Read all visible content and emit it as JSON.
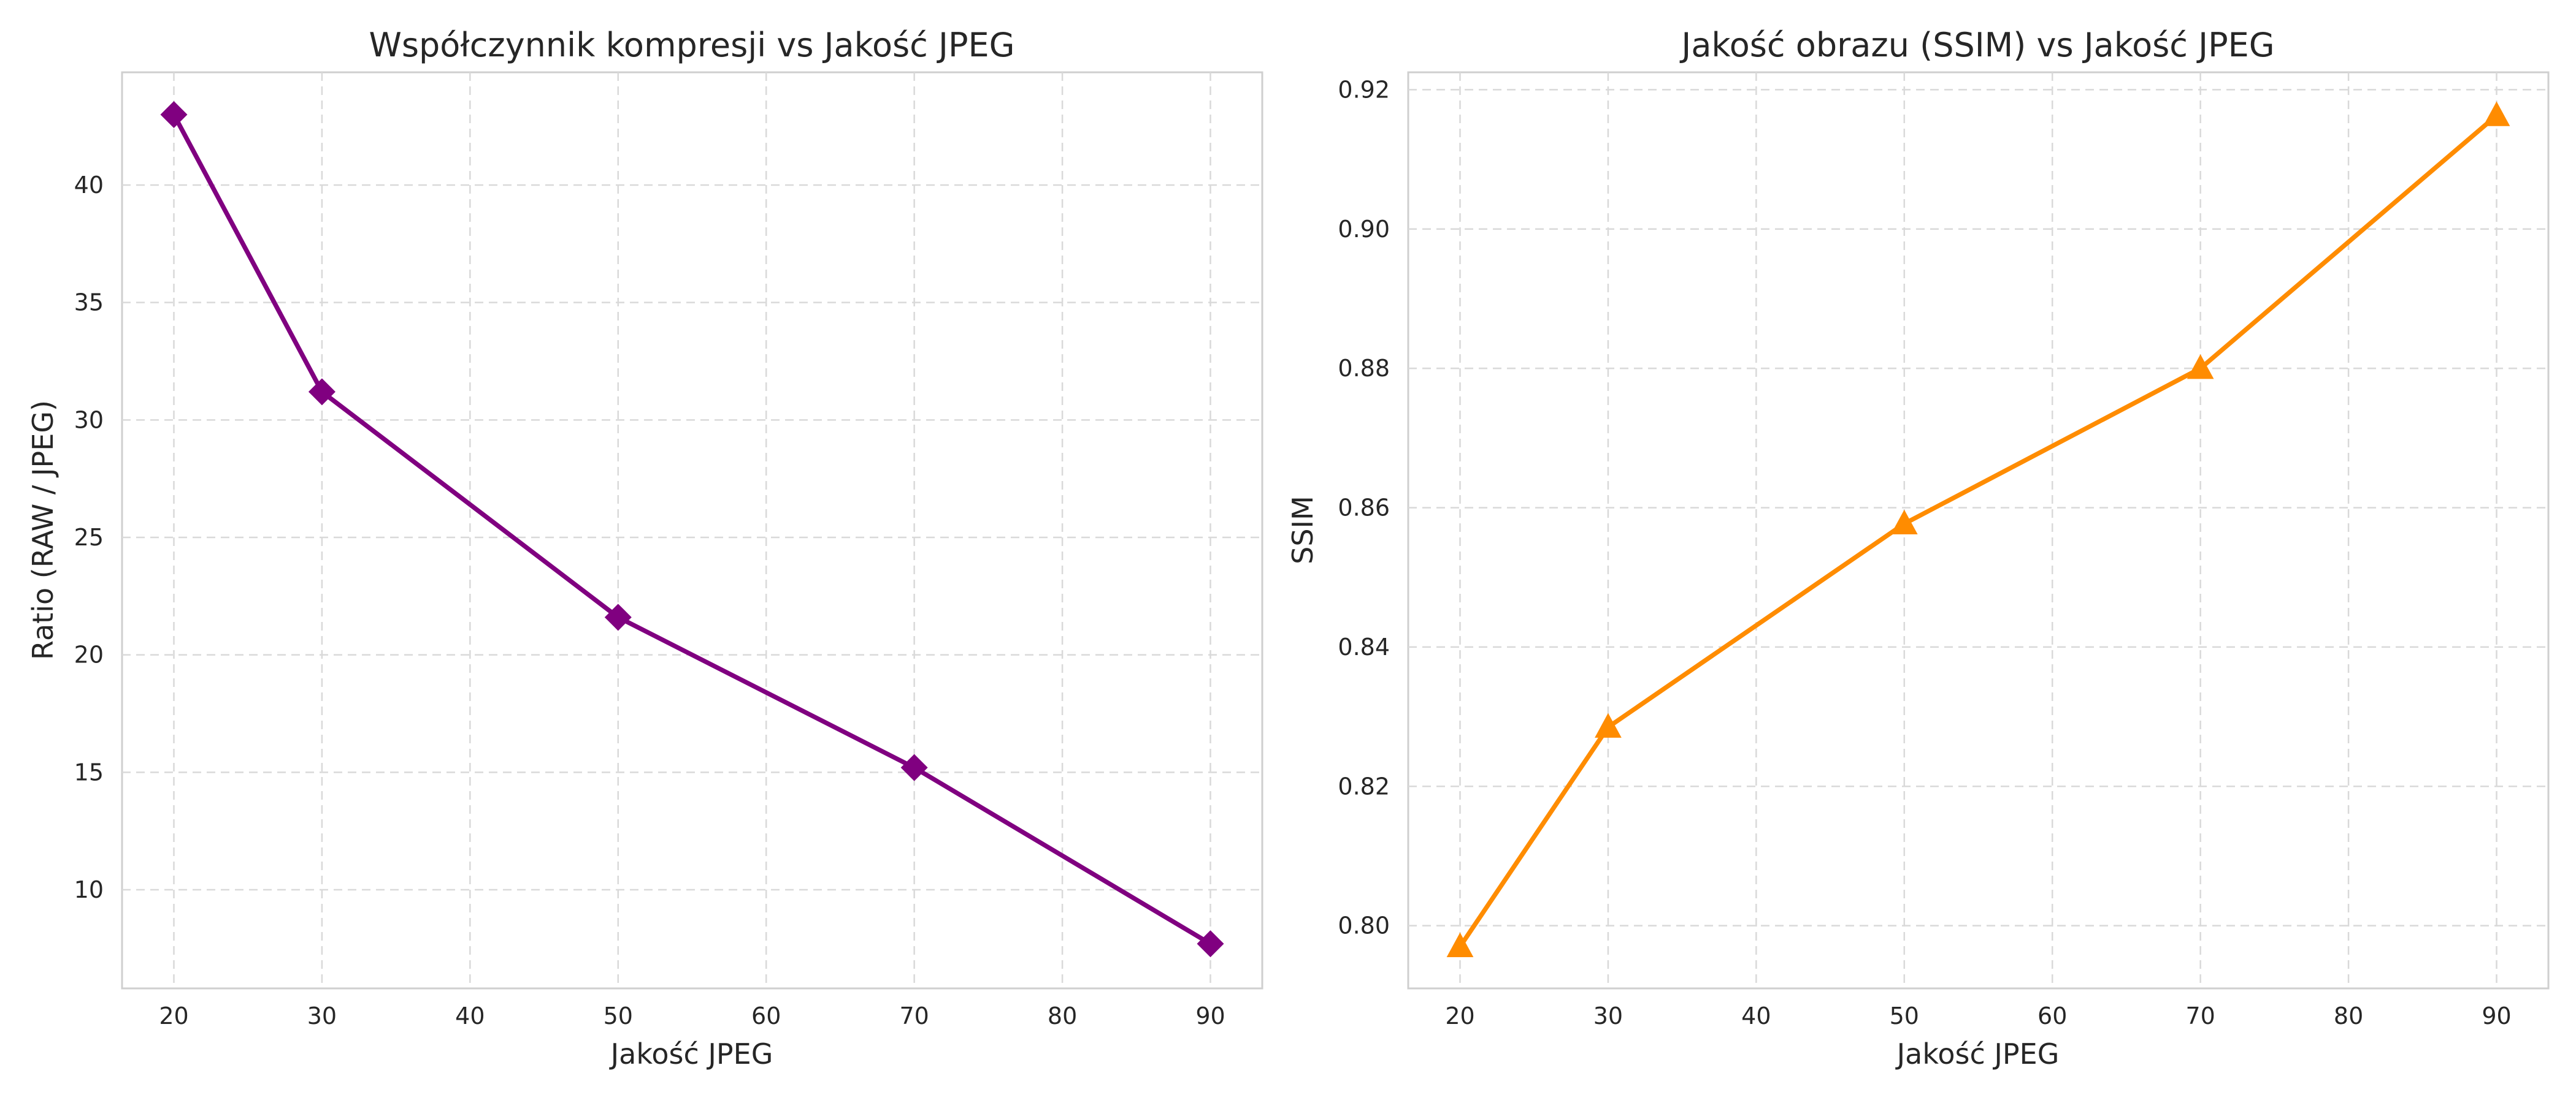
{
  "chart_data": [
    {
      "type": "line",
      "title": "Współczynnik kompresji vs Jakość JPEG",
      "xlabel": "Jakość JPEG",
      "ylabel": "Ratio (RAW / JPEG)",
      "xlim": [
        16.5,
        93.5
      ],
      "ylim": [
        5.8,
        44.8
      ],
      "xticks": [
        20,
        30,
        40,
        50,
        60,
        70,
        80,
        90
      ],
      "yticks": [
        10,
        15,
        20,
        25,
        30,
        35,
        40
      ],
      "ytick_decimals": 0,
      "grid": true,
      "marker": "diamond",
      "color": "#800080",
      "series": [
        {
          "x": [
            20,
            30,
            50,
            70,
            90
          ],
          "values": [
            43.0,
            31.2,
            21.6,
            15.2,
            7.7
          ]
        }
      ]
    },
    {
      "type": "line",
      "title": "Jakość obrazu (SSIM) vs Jakość JPEG",
      "xlabel": "Jakość JPEG",
      "ylabel": "SSIM",
      "xlim": [
        16.5,
        93.5
      ],
      "ylim": [
        0.791,
        0.9225
      ],
      "xticks": [
        20,
        30,
        40,
        50,
        60,
        70,
        80,
        90
      ],
      "yticks": [
        0.8,
        0.82,
        0.84,
        0.86,
        0.88,
        0.9,
        0.92
      ],
      "ytick_decimals": 2,
      "grid": true,
      "marker": "triangle",
      "color": "#ff8c00",
      "series": [
        {
          "x": [
            20,
            30,
            50,
            70,
            90
          ],
          "values": [
            0.797,
            0.8285,
            0.8577,
            0.88,
            0.9163
          ]
        }
      ]
    }
  ]
}
